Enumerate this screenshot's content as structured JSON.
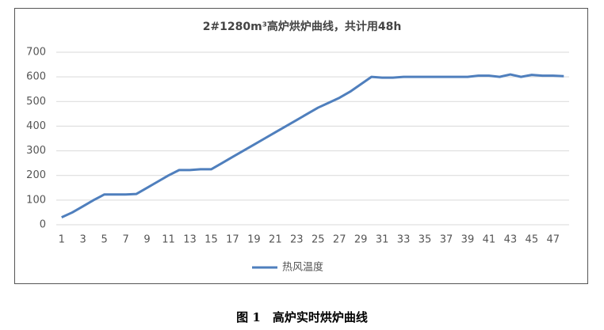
{
  "chart_data": {
    "type": "line",
    "title": "2#1280m³高炉烘炉曲线，共计用48h",
    "categories": [
      1,
      null,
      3,
      null,
      5,
      null,
      7,
      null,
      9,
      null,
      11,
      null,
      13,
      null,
      15,
      null,
      17,
      null,
      19,
      null,
      21,
      null,
      23,
      null,
      25,
      null,
      27,
      null,
      29,
      null,
      31,
      null,
      33,
      null,
      35,
      null,
      37,
      null,
      39,
      null,
      41,
      null,
      43,
      null,
      45,
      null,
      47,
      null
    ],
    "series": [
      {
        "name": "热风温度",
        "color": "#4f7fbd",
        "values": [
          30,
          50,
          75,
          100,
          123,
          123,
          123,
          125,
          150,
          175,
          200,
          222,
          222,
          225,
          225,
          250,
          275,
          300,
          325,
          350,
          375,
          400,
          425,
          450,
          475,
          495,
          515,
          540,
          570,
          600,
          597,
          597,
          600,
          600,
          600,
          600,
          600,
          600,
          600,
          605,
          605,
          600,
          610,
          600,
          608,
          605,
          605,
          603
        ]
      }
    ],
    "ylim": [
      0,
      700
    ],
    "yticks": [
      0,
      100,
      200,
      300,
      400,
      500,
      600,
      700
    ],
    "grid": true,
    "legend": "bottom"
  },
  "caption": "图 1　高炉实时烘炉曲线"
}
